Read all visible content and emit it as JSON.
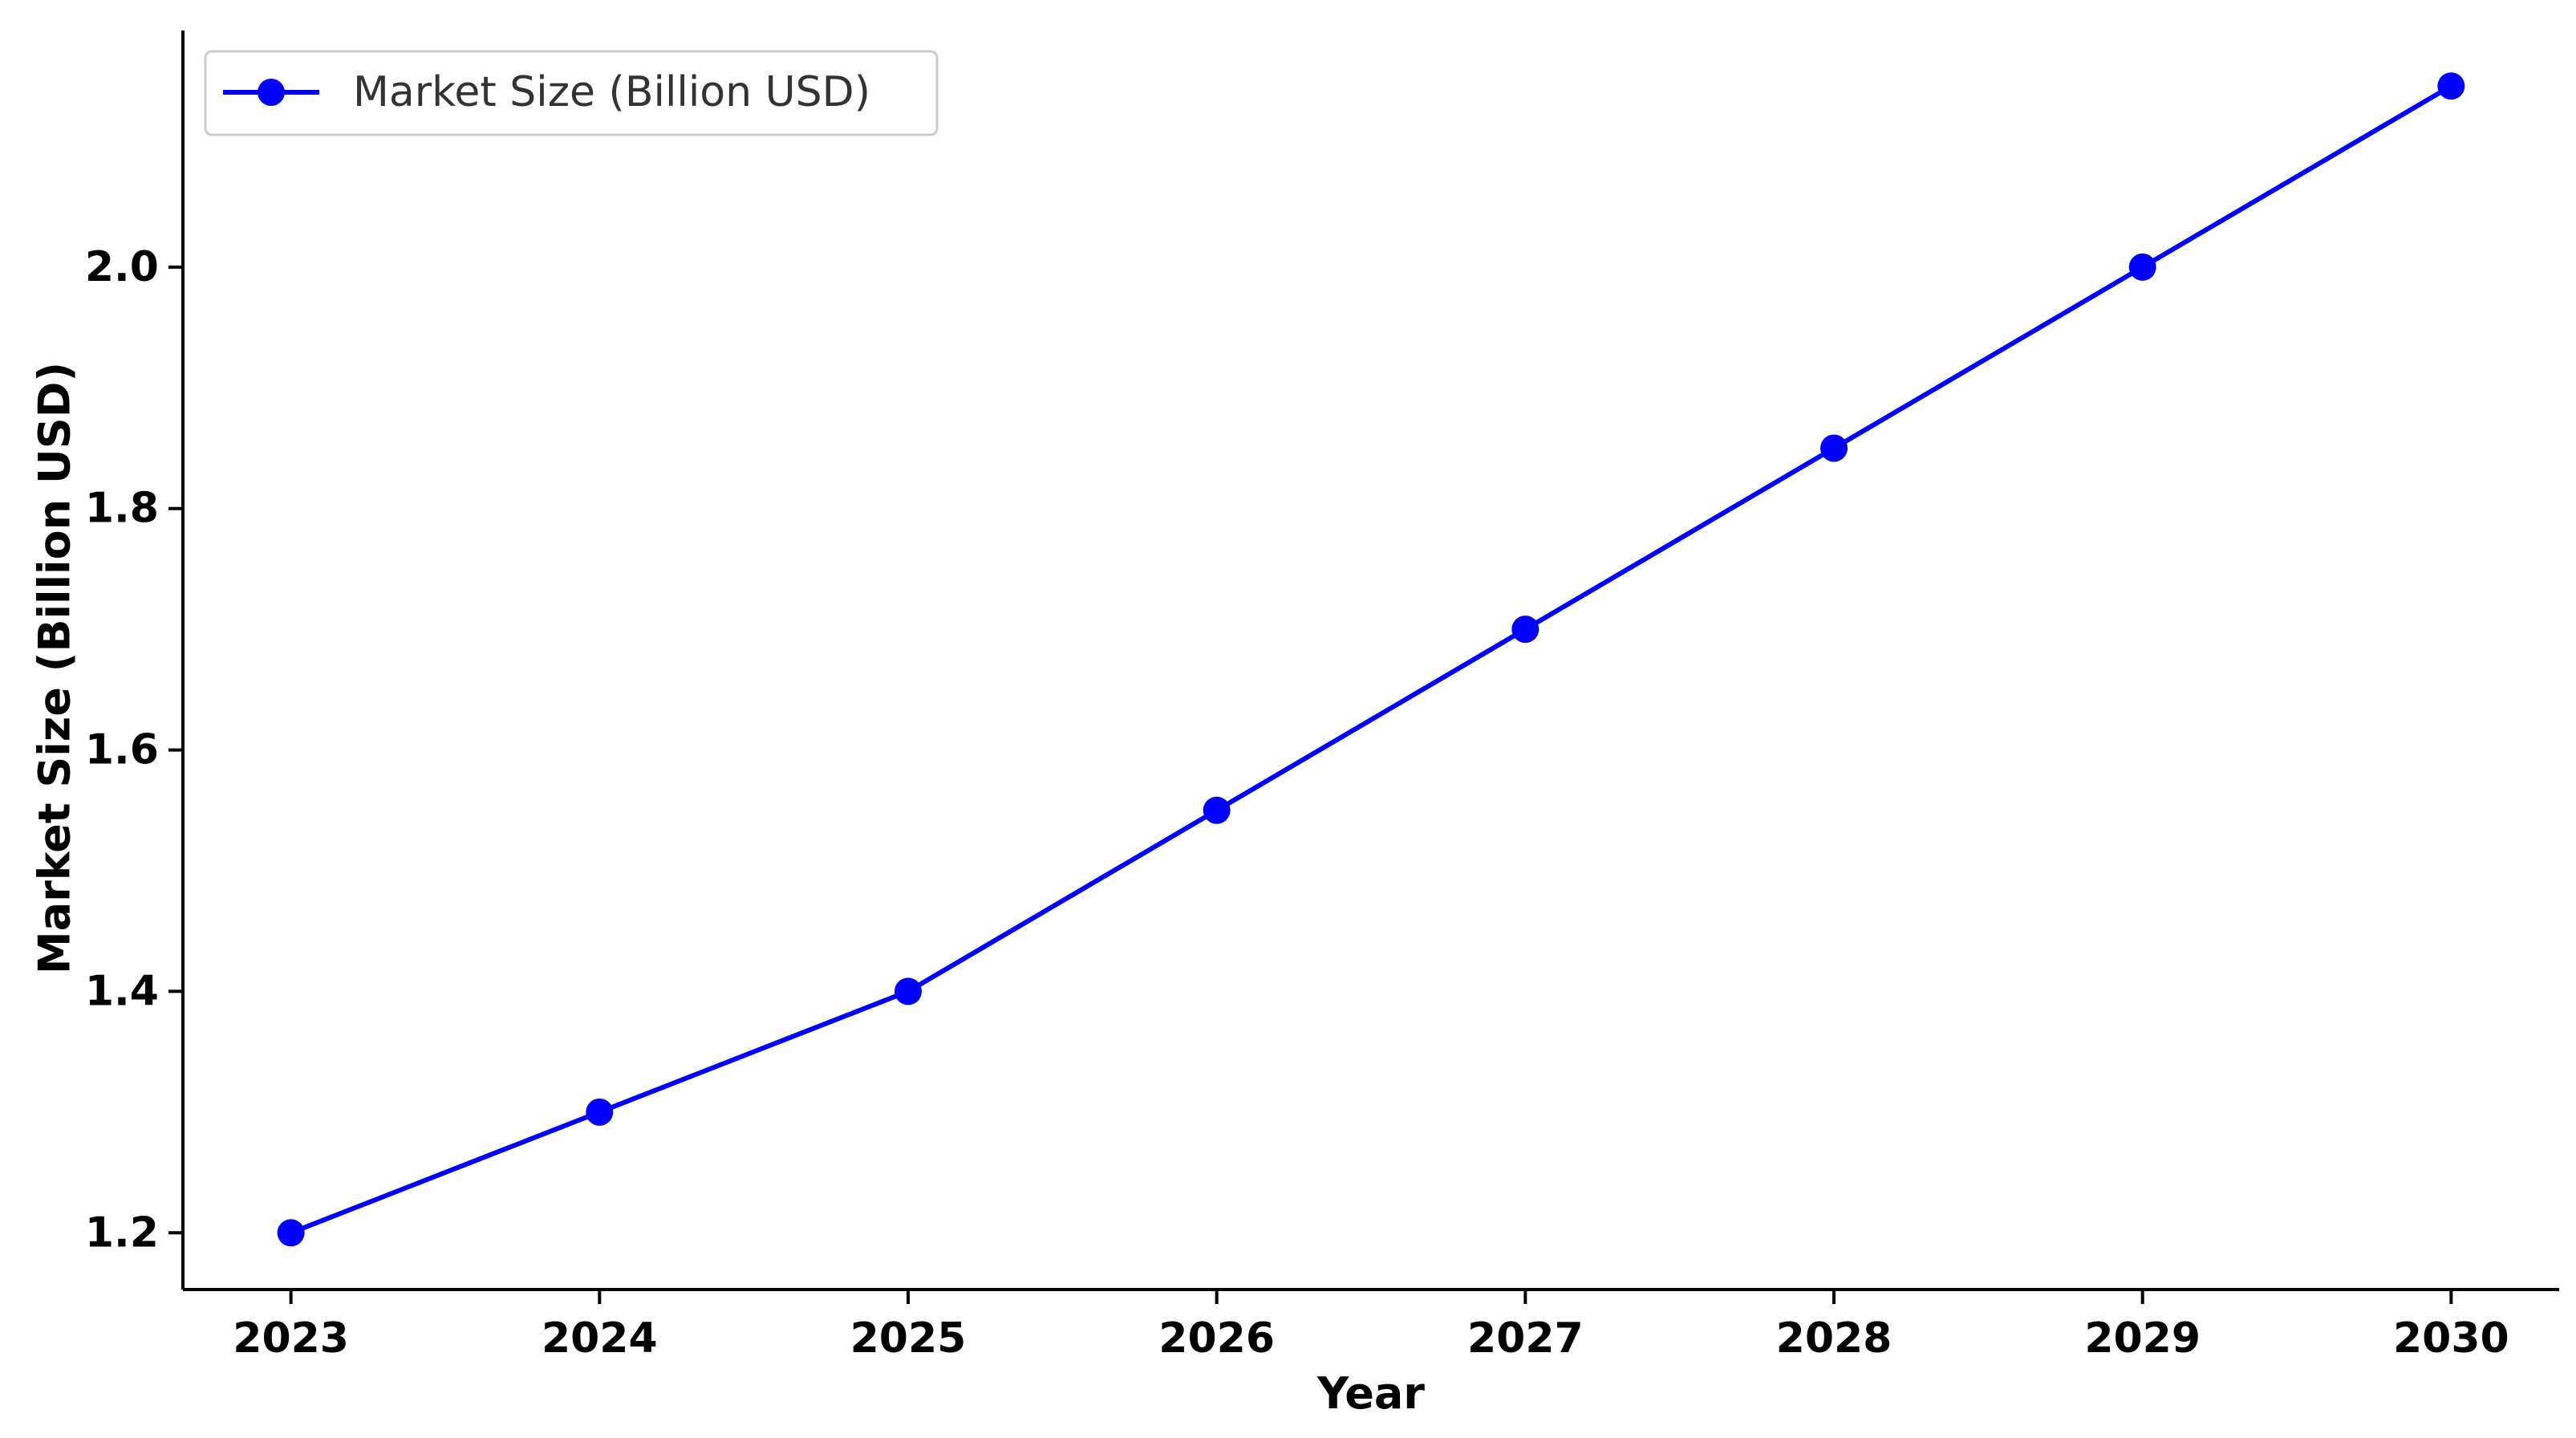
{
  "chart_data": {
    "type": "line",
    "title": "",
    "xlabel": "Year",
    "ylabel": "Market Size (Billion USD)",
    "x": [
      2023,
      2024,
      2025,
      2026,
      2027,
      2028,
      2029,
      2030
    ],
    "x_tick_labels": [
      "2023",
      "2024",
      "2025",
      "2026",
      "2027",
      "2028",
      "2029",
      "2030"
    ],
    "y_ticks": [
      1.2,
      1.4,
      1.6,
      1.8,
      2.0
    ],
    "y_tick_labels": [
      "1.2",
      "1.4",
      "1.6",
      "1.8",
      "2.0"
    ],
    "xlim": [
      2022.65,
      2030.35
    ],
    "ylim": [
      1.153,
      2.196
    ],
    "grid": false,
    "legend_position": "top-left",
    "series": [
      {
        "name": "Market Size (Billion USD)",
        "color": "#0000ff",
        "marker": "circle",
        "values": [
          1.2,
          1.3,
          1.4,
          1.55,
          1.7,
          1.85,
          2.0,
          2.15
        ]
      }
    ]
  }
}
